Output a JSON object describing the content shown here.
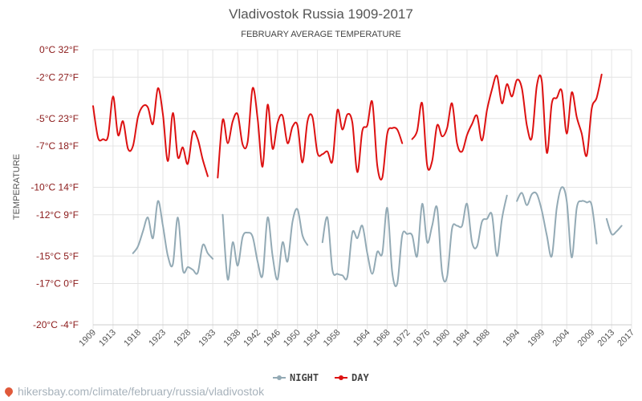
{
  "chart_data": {
    "type": "line",
    "title": "Vladivostok Russia 1909-2017",
    "subtitle": "FEBRUARY AVERAGE TEMPERATURE",
    "ylabel": "TEMPERATURE",
    "y_ticks": [
      {
        "value": 0,
        "label": "0°C 32°F"
      },
      {
        "value": -2,
        "label": "-2°C 27°F"
      },
      {
        "value": -5,
        "label": "-5°C 23°F"
      },
      {
        "value": -7,
        "label": "-7°C 18°F"
      },
      {
        "value": -10,
        "label": "-10°C 14°F"
      },
      {
        "value": -12,
        "label": "-12°C 9°F"
      },
      {
        "value": -15,
        "label": "-15°C 5°F"
      },
      {
        "value": -17,
        "label": "-17°C 0°F"
      },
      {
        "value": -20,
        "label": "-20°C -4°F"
      }
    ],
    "x_ticks": [
      1909,
      1913,
      1918,
      1923,
      1928,
      1933,
      1938,
      1942,
      1946,
      1950,
      1954,
      1958,
      1964,
      1968,
      1972,
      1976,
      1980,
      1984,
      1988,
      1994,
      1999,
      2004,
      2009,
      2013,
      2017
    ],
    "xlim": [
      1909,
      2017
    ],
    "ylim": [
      -20,
      0
    ],
    "grid": true,
    "legend_position": "bottom-center",
    "series": [
      {
        "name": "NIGHT",
        "color": "#93aab5",
        "segments": [
          [
            [
              1917,
              -14.8
            ],
            [
              1918,
              -14.3
            ],
            [
              1919,
              -13.2
            ],
            [
              1920,
              -12.2
            ],
            [
              1921,
              -13.7
            ],
            [
              1922,
              -11.0
            ],
            [
              1923,
              -12.8
            ],
            [
              1924,
              -15.0
            ],
            [
              1925,
              -15.6
            ],
            [
              1926,
              -12.2
            ],
            [
              1927,
              -16.0
            ],
            [
              1928,
              -15.8
            ],
            [
              1929,
              -16.0
            ],
            [
              1930,
              -16.2
            ],
            [
              1931,
              -14.2
            ],
            [
              1932,
              -14.8
            ],
            [
              1933,
              -15.2
            ]
          ],
          [
            [
              1935,
              -12.0
            ],
            [
              1936,
              -16.7
            ],
            [
              1937,
              -14.0
            ],
            [
              1938,
              -15.7
            ],
            [
              1939,
              -13.6
            ],
            [
              1940,
              -13.3
            ],
            [
              1941,
              -13.6
            ],
            [
              1942,
              -15.4
            ],
            [
              1943,
              -16.4
            ],
            [
              1944,
              -12.2
            ],
            [
              1945,
              -15.0
            ],
            [
              1946,
              -16.7
            ],
            [
              1947,
              -14.0
            ],
            [
              1948,
              -15.4
            ],
            [
              1949,
              -12.5
            ],
            [
              1950,
              -11.6
            ],
            [
              1951,
              -13.5
            ],
            [
              1952,
              -14.2
            ]
          ],
          [
            [
              1955,
              -14.0
            ],
            [
              1956,
              -12.2
            ],
            [
              1957,
              -16.0
            ],
            [
              1958,
              -16.3
            ],
            [
              1959,
              -16.4
            ],
            [
              1960,
              -16.5
            ],
            [
              1961,
              -13.3
            ],
            [
              1962,
              -13.7
            ],
            [
              1963,
              -12.8
            ],
            [
              1964,
              -14.8
            ],
            [
              1965,
              -16.3
            ],
            [
              1966,
              -14.7
            ],
            [
              1967,
              -14.8
            ],
            [
              1968,
              -11.5
            ],
            [
              1969,
              -16.2
            ],
            [
              1970,
              -17.0
            ],
            [
              1971,
              -13.5
            ],
            [
              1972,
              -13.4
            ],
            [
              1973,
              -13.5
            ],
            [
              1974,
              -15.0
            ],
            [
              1975,
              -11.2
            ],
            [
              1976,
              -14.0
            ],
            [
              1977,
              -12.8
            ],
            [
              1978,
              -11.5
            ],
            [
              1979,
              -16.2
            ],
            [
              1980,
              -16.5
            ],
            [
              1981,
              -13.0
            ],
            [
              1982,
              -12.8
            ],
            [
              1983,
              -12.8
            ],
            [
              1984,
              -11.2
            ],
            [
              1985,
              -14.0
            ],
            [
              1986,
              -14.3
            ],
            [
              1987,
              -12.5
            ],
            [
              1988,
              -12.3
            ],
            [
              1989,
              -12.0
            ],
            [
              1990,
              -15.0
            ],
            [
              1991,
              -12.3
            ],
            [
              1992,
              -10.6
            ]
          ],
          [
            [
              1994,
              -11.0
            ],
            [
              1995,
              -10.4
            ],
            [
              1996,
              -11.3
            ],
            [
              1997,
              -10.5
            ],
            [
              1998,
              -10.5
            ],
            [
              1999,
              -11.7
            ],
            [
              2000,
              -13.5
            ],
            [
              2001,
              -15.0
            ],
            [
              2002,
              -11.5
            ],
            [
              2003,
              -10.0
            ],
            [
              2004,
              -11.0
            ],
            [
              2005,
              -15.1
            ],
            [
              2006,
              -11.5
            ],
            [
              2007,
              -11.0
            ],
            [
              2008,
              -11.1
            ],
            [
              2009,
              -11.3
            ],
            [
              2010,
              -14.1
            ]
          ],
          [
            [
              2012,
              -12.3
            ],
            [
              2013,
              -13.4
            ],
            [
              2014,
              -13.2
            ],
            [
              2015,
              -12.8
            ]
          ]
        ]
      },
      {
        "name": "DAY",
        "color": "#dd1111",
        "segments": [
          [
            [
              1909,
              -4.1
            ],
            [
              1910,
              -6.4
            ],
            [
              1911,
              -6.5
            ],
            [
              1912,
              -6.3
            ],
            [
              1913,
              -3.4
            ],
            [
              1914,
              -6.2
            ],
            [
              1915,
              -5.2
            ],
            [
              1916,
              -7.2
            ],
            [
              1917,
              -7.0
            ],
            [
              1918,
              -4.9
            ],
            [
              1919,
              -4.1
            ],
            [
              1920,
              -4.2
            ],
            [
              1921,
              -5.4
            ],
            [
              1922,
              -2.8
            ],
            [
              1923,
              -4.7
            ],
            [
              1924,
              -8.1
            ],
            [
              1925,
              -4.6
            ],
            [
              1926,
              -7.8
            ],
            [
              1927,
              -7.1
            ],
            [
              1928,
              -8.3
            ],
            [
              1929,
              -6.0
            ],
            [
              1930,
              -6.5
            ],
            [
              1931,
              -8.0
            ],
            [
              1932,
              -9.2
            ]
          ],
          [
            [
              1934,
              -9.3
            ],
            [
              1935,
              -5.1
            ],
            [
              1936,
              -6.8
            ],
            [
              1937,
              -5.2
            ],
            [
              1938,
              -4.7
            ],
            [
              1939,
              -6.9
            ],
            [
              1940,
              -6.7
            ],
            [
              1941,
              -2.8
            ],
            [
              1942,
              -5.0
            ],
            [
              1943,
              -8.5
            ],
            [
              1944,
              -4.0
            ],
            [
              1945,
              -7.2
            ],
            [
              1946,
              -5.3
            ],
            [
              1947,
              -4.8
            ],
            [
              1948,
              -6.8
            ],
            [
              1949,
              -5.6
            ],
            [
              1950,
              -5.5
            ],
            [
              1951,
              -8.2
            ],
            [
              1952,
              -5.2
            ],
            [
              1953,
              -4.9
            ],
            [
              1954,
              -7.5
            ],
            [
              1955,
              -7.6
            ],
            [
              1956,
              -7.4
            ],
            [
              1957,
              -8.1
            ],
            [
              1958,
              -4.4
            ],
            [
              1959,
              -5.8
            ],
            [
              1960,
              -4.7
            ],
            [
              1961,
              -5.3
            ],
            [
              1962,
              -8.9
            ],
            [
              1963,
              -5.9
            ],
            [
              1964,
              -5.5
            ],
            [
              1965,
              -3.8
            ],
            [
              1966,
              -8.4
            ],
            [
              1967,
              -9.3
            ],
            [
              1968,
              -6.1
            ],
            [
              1969,
              -5.7
            ],
            [
              1970,
              -5.8
            ],
            [
              1971,
              -6.8
            ]
          ],
          [
            [
              1973,
              -6.5
            ],
            [
              1974,
              -5.9
            ],
            [
              1975,
              -3.9
            ],
            [
              1976,
              -8.4
            ],
            [
              1977,
              -8.1
            ],
            [
              1978,
              -5.5
            ],
            [
              1979,
              -6.3
            ],
            [
              1980,
              -5.7
            ],
            [
              1981,
              -3.9
            ],
            [
              1982,
              -6.8
            ],
            [
              1983,
              -7.4
            ],
            [
              1984,
              -6.2
            ],
            [
              1985,
              -5.4
            ],
            [
              1986,
              -4.8
            ],
            [
              1987,
              -6.6
            ],
            [
              1988,
              -4.4
            ],
            [
              1989,
              -2.9
            ],
            [
              1990,
              -1.9
            ],
            [
              1991,
              -3.9
            ],
            [
              1992,
              -2.5
            ],
            [
              1993,
              -3.4
            ],
            [
              1994,
              -2.2
            ],
            [
              1995,
              -2.8
            ],
            [
              1996,
              -5.5
            ],
            [
              1997,
              -6.4
            ],
            [
              1998,
              -2.6
            ],
            [
              1999,
              -2.3
            ],
            [
              2000,
              -7.5
            ],
            [
              2001,
              -3.9
            ],
            [
              2002,
              -3.5
            ],
            [
              2003,
              -3.0
            ],
            [
              2004,
              -6.1
            ],
            [
              2005,
              -3.1
            ],
            [
              2006,
              -4.9
            ],
            [
              2007,
              -6.1
            ],
            [
              2008,
              -7.7
            ],
            [
              2009,
              -4.3
            ],
            [
              2010,
              -3.5
            ],
            [
              2011,
              -1.8
            ]
          ]
        ]
      }
    ]
  },
  "watermark": {
    "icon": "map-pin-icon",
    "text": "hikersbay.com/climate/february/russia/vladivostok"
  }
}
